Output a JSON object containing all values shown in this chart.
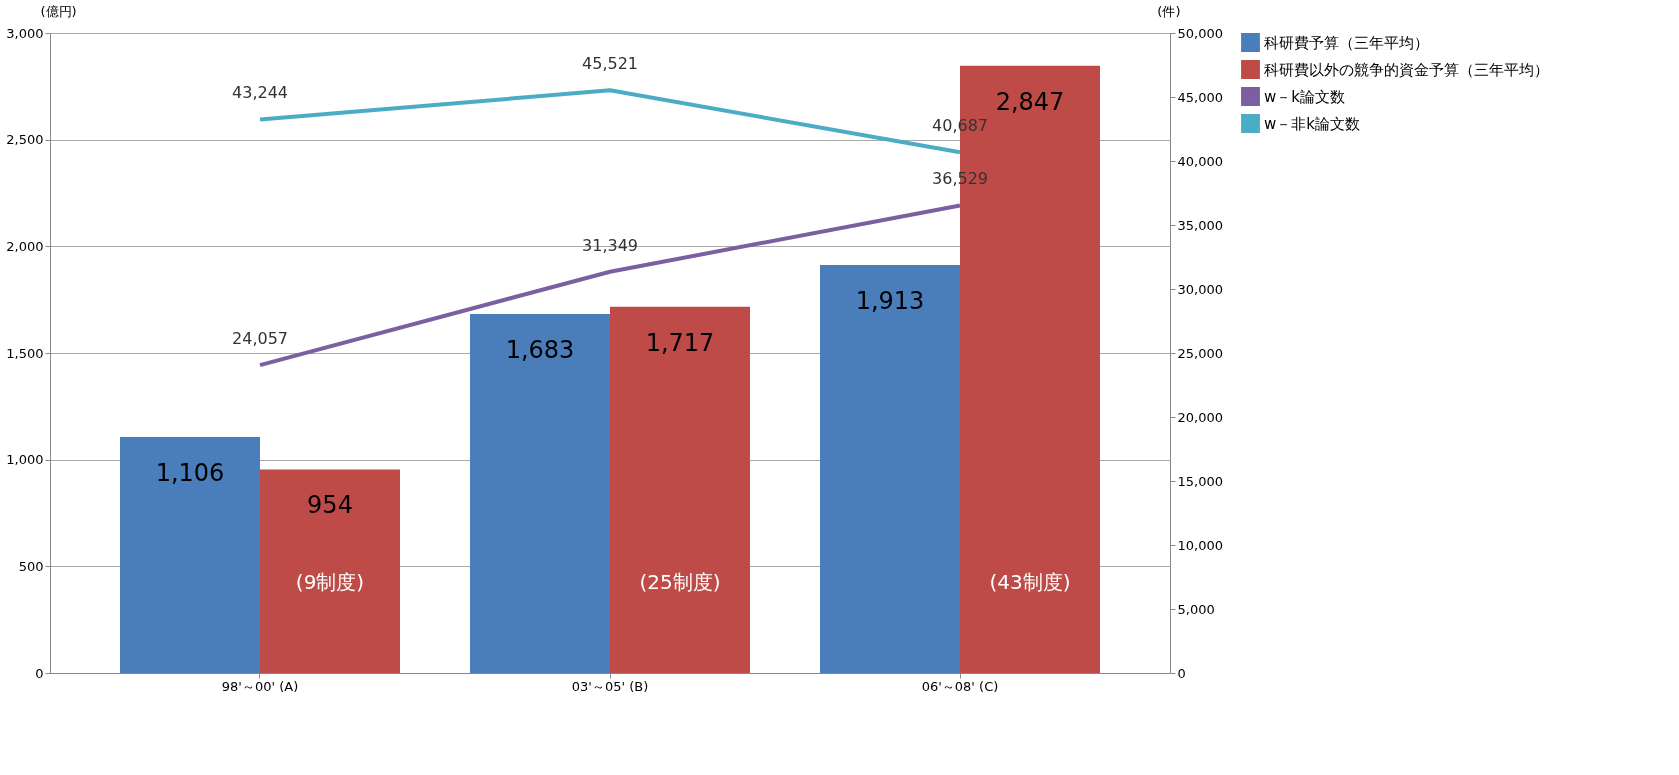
{
  "chart_data": {
    "type": "bar",
    "ylabel": "(億円)",
    "y2label": "(件)",
    "categories": [
      "98'～00' (A)",
      "03'～05' (B)",
      "06'～08' (C)"
    ],
    "series": [
      {
        "name": "科研費予算（三年平均）",
        "color": "#4a7ebb",
        "values": [
          1106,
          1683,
          1913
        ],
        "value_labels": [
          "1,106",
          "1,683",
          "1,913"
        ]
      },
      {
        "name": "科研費以外の競争的資金予算（三年平均）",
        "color": "#be4b48",
        "values": [
          954,
          1717,
          2847
        ],
        "value_labels": [
          "954",
          "1,717",
          "2,847"
        ]
      },
      {
        "name": "w－k論文数",
        "type": "line",
        "axis": "y2",
        "color": "#7c5fa0",
        "values": [
          24057,
          31349,
          36529
        ],
        "value_labels": [
          "24,057",
          "31,349",
          "36,529"
        ]
      },
      {
        "name": "w－非k論文数",
        "type": "line",
        "axis": "y2",
        "color": "#4bacc6",
        "values": [
          43244,
          45521,
          40687
        ],
        "value_labels": [
          "43,244",
          "45,521",
          "40,687"
        ]
      }
    ],
    "annotations": [
      "(9制度)",
      "(25制度)",
      "(43制度)"
    ],
    "ylim": [
      0,
      3000
    ],
    "yticks": [
      0,
      {
        "value": 500,
        "label": "500"
      },
      {
        "value": 1000,
        "label": "1,000"
      },
      {
        "value": 1500,
        "label": "1,500"
      },
      {
        "value": 2000,
        "label": "2,000"
      },
      {
        "value": 2500,
        "label": "2,500"
      },
      {
        "value": 3000,
        "label": "3,000"
      }
    ],
    "y2lim": [
      0,
      50000
    ],
    "y2ticks": [
      0,
      {
        "value": 5000,
        "label": "5,000"
      },
      {
        "value": 10000,
        "label": "10,000"
      },
      {
        "value": 15000,
        "label": "15,000"
      },
      {
        "value": 20000,
        "label": "20,000"
      },
      {
        "value": 25000,
        "label": "25,000"
      },
      {
        "value": 30000,
        "label": "30,000"
      },
      {
        "value": 35000,
        "label": "35,000"
      },
      {
        "value": 40000,
        "label": "40,000"
      },
      {
        "value": 45000,
        "label": "45,000"
      },
      {
        "value": 50000,
        "label": "50,000"
      }
    ],
    "grid": "y",
    "legend": "right"
  }
}
